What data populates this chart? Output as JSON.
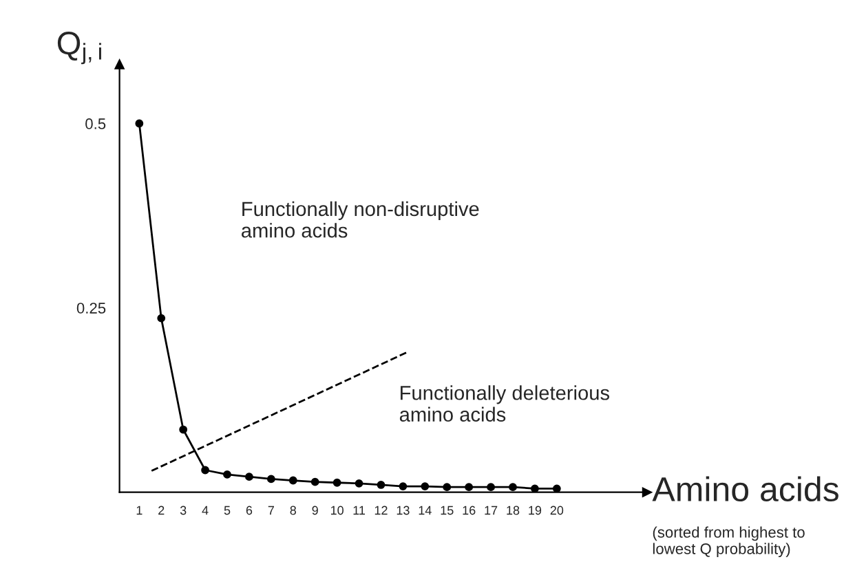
{
  "chart_data": {
    "type": "line",
    "xlabel": "Amino acids",
    "ylabel": "Q$_{j,i}$",
    "x": [
      1,
      2,
      3,
      4,
      5,
      6,
      7,
      8,
      9,
      10,
      11,
      12,
      13,
      14,
      15,
      16,
      17,
      18,
      19,
      20
    ],
    "xlim": [
      0.1,
      24.1
    ],
    "ylim": [
      0,
      0.58
    ],
    "xticks": [
      1,
      2,
      3,
      4,
      5,
      6,
      7,
      8,
      9,
      10,
      11,
      12,
      13,
      14,
      15,
      16,
      17,
      18,
      19,
      20
    ],
    "yticks": [
      0.25,
      0.5
    ],
    "marker": "circle",
    "series": [
      {
        "color": "#000000",
        "values": [
          0.5,
          0.236,
          0.085,
          0.03,
          0.024,
          0.021,
          0.018,
          0.016,
          0.014,
          0.013,
          0.012,
          0.01,
          0.008,
          0.008,
          0.007,
          0.007,
          0.007,
          0.007,
          0.005,
          0.005
        ]
      },
      {
        "type": "line",
        "color": "#000000",
        "line_style": "dashed",
        "marker": "none",
        "x": [
          1.56,
          13.2
        ],
        "values": [
          0.029,
          0.19
        ]
      }
    ],
    "annotations": [
      "Functionally non-disruptive\namino acids",
      "Functionally deleterious\namino acids",
      "(sorted from highest to\nlowest Q probability)"
    ]
  }
}
